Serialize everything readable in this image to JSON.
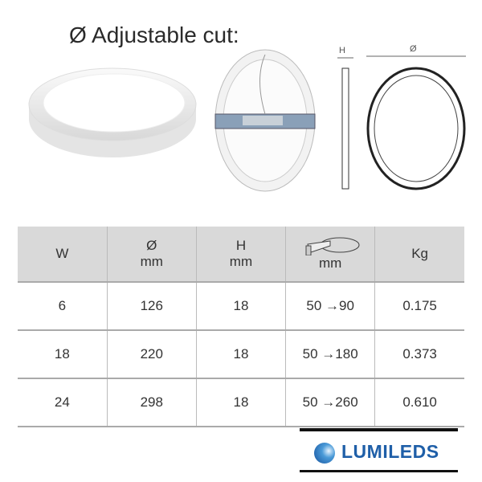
{
  "title": "Ø Adjustable cut:",
  "drawing_labels": {
    "height": "H",
    "diameter": "Ø"
  },
  "table": {
    "headers": [
      {
        "top": "W",
        "bottom": ""
      },
      {
        "top": "Ø",
        "bottom": "mm"
      },
      {
        "top": "H",
        "bottom": "mm"
      },
      {
        "top": "",
        "bottom": "mm",
        "icon": "adjustable-cut-icon"
      },
      {
        "top": "Kg",
        "bottom": ""
      }
    ],
    "rows": [
      [
        "6",
        "126",
        "18",
        "50 →90",
        "0.175"
      ],
      [
        "18",
        "220",
        "18",
        "50 →180",
        "0.373"
      ],
      [
        "24",
        "298",
        "18",
        "50 →260",
        "0.610"
      ]
    ]
  },
  "logo": {
    "text": "LUMILEDS",
    "color": "#1f5fa8"
  }
}
